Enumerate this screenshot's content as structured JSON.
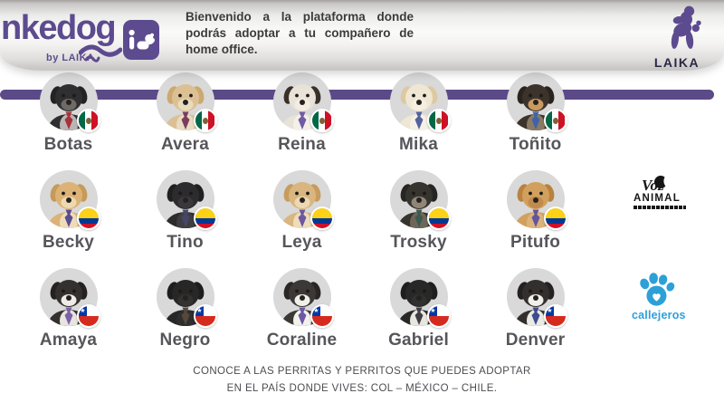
{
  "page": {
    "background": "#ffffff",
    "accent_purple": "#5d4b8f",
    "bar_purple": "#5b4a88"
  },
  "header": {
    "logo": {
      "wordmark": "nkedog",
      "byline": "by LAIKA",
      "badge_icon": "white-dog-in-badge"
    },
    "welcome": "Bienvenido a la plataforma donde podrás adoptar a tu compañero de home office.",
    "laika_label": "LAIKA"
  },
  "partners": {
    "voz_animal": {
      "line1": "Voz",
      "line2": "ANIMAL"
    },
    "callejeros": {
      "label": "callejeros",
      "color": "#2da0d8"
    }
  },
  "grid": {
    "rows": [
      {
        "country": "mx",
        "dogs": [
          {
            "name": "Botas",
            "fur": "#2f2f31",
            "ear": "#232325",
            "muzzle": "#6e6a66",
            "chest": "#b9b6b3",
            "tie": "#a8323c"
          },
          {
            "name": "Avera",
            "fur": "#dcc094",
            "ear": "#cba96f",
            "muzzle": "#e9dcbc",
            "chest": "#e8dcc2",
            "tie": "#7d3b5e"
          },
          {
            "name": "Reina",
            "fur": "#e8e2d8",
            "ear": "#383029",
            "muzzle": "#f2ece2",
            "chest": "#f4f0e8",
            "tie": "#6f5ca3"
          },
          {
            "name": "Mika",
            "fur": "#efe6d4",
            "ear": "#ddc9a2",
            "muzzle": "#f6efe0",
            "chest": "#f6f1e6",
            "tie": "#54639f"
          },
          {
            "name": "Toñito",
            "fur": "#3b332c",
            "ear": "#2a241f",
            "muzzle": "#c89a5e",
            "chest": "#8a7a64",
            "tie": "#3f63a8"
          }
        ]
      },
      {
        "country": "co",
        "dogs": [
          {
            "name": "Becky",
            "fur": "#dcb277",
            "ear": "#c69a58",
            "muzzle": "#edd9b0",
            "chest": "#eeddbb",
            "tie": "#5a4c90"
          },
          {
            "name": "Tino",
            "fur": "#2c2c2e",
            "ear": "#202022",
            "muzzle": "#39393c",
            "chest": "#3e3e41",
            "tie": "#46466a"
          },
          {
            "name": "Leya",
            "fur": "#d9b580",
            "ear": "#c79c5e",
            "muzzle": "#ecd9b2",
            "chest": "#eeddbb",
            "tie": "#6b58a0"
          },
          {
            "name": "Trosky",
            "fur": "#36342f",
            "ear": "#262522",
            "muzzle": "#8f8676",
            "chest": "#6e6759",
            "tie": "#3c5a4e"
          },
          {
            "name": "Pitufo",
            "fur": "#d2a05e",
            "ear": "#b8823f",
            "muzzle": "#c08b4b",
            "chest": "#dcb37a",
            "tie": "#64549c"
          }
        ]
      },
      {
        "country": "cl",
        "dogs": [
          {
            "name": "Amaya",
            "fur": "#34302e",
            "ear": "#242120",
            "muzzle": "#efece7",
            "chest": "#e8e4de",
            "tie": "#7a62aa"
          },
          {
            "name": "Negro",
            "fur": "#272727",
            "ear": "#1d1d1d",
            "muzzle": "#323232",
            "chest": "#2e2e2e",
            "tie": "#55483c"
          },
          {
            "name": "Coraline",
            "fur": "#3b3835",
            "ear": "#292624",
            "muzzle": "#f1efe9",
            "chest": "#f3f1ec",
            "tie": "#6c58a4"
          },
          {
            "name": "Gabriel",
            "fur": "#282828",
            "ear": "#1e1e1e",
            "muzzle": "#303030",
            "chest": "#e9e6e0",
            "tie": "#3e3e44"
          },
          {
            "name": "Denver",
            "fur": "#332f2c",
            "ear": "#242120",
            "muzzle": "#f2f0ea",
            "chest": "#eceae4",
            "tie": "#3c4c8e"
          }
        ]
      }
    ]
  },
  "flags": {
    "mx": {
      "green": "#006847",
      "white": "#ffffff",
      "red": "#ce1126"
    },
    "co": {
      "yellow": "#fcd116",
      "blue": "#003893",
      "red": "#ce1126"
    },
    "cl": {
      "blue": "#0039a6",
      "white": "#ffffff",
      "red": "#d52b1e",
      "star": "★"
    }
  },
  "footer": {
    "line1": "CONOCE A LAS PERRITAS Y PERRITOS QUE PUEDES ADOPTAR",
    "line2": "EN EL PAÍS DONDE VIVES: COL – MÉXICO – CHILE."
  }
}
